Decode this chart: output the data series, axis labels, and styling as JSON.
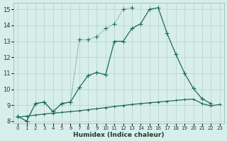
{
  "xlabel": "Humidex (Indice chaleur)",
  "xlim": [
    -0.5,
    23.5
  ],
  "ylim": [
    7.85,
    15.4
  ],
  "yticks": [
    8,
    9,
    10,
    11,
    12,
    13,
    14,
    15
  ],
  "xticks": [
    0,
    1,
    2,
    3,
    4,
    5,
    6,
    7,
    8,
    9,
    10,
    11,
    12,
    13,
    14,
    15,
    16,
    17,
    18,
    19,
    20,
    21,
    22,
    23
  ],
  "bg_color": "#d8eeea",
  "line_color": "#1a6b5a",
  "grid_color": "#b8d8d2",
  "curve1_x": [
    0,
    1,
    2,
    3,
    4,
    5,
    6,
    7,
    8,
    9,
    10,
    11,
    12,
    13,
    14,
    15,
    16,
    17,
    18,
    19,
    20,
    21,
    22
  ],
  "curve1_y": [
    8.3,
    8.0,
    9.1,
    9.2,
    8.6,
    9.1,
    9.2,
    10.1,
    10.85,
    11.05,
    10.9,
    13.0,
    13.0,
    13.8,
    14.1,
    15.0,
    15.1,
    13.5,
    12.2,
    11.0,
    10.05,
    9.4,
    9.1
  ],
  "curve2_x": [
    0,
    1,
    2,
    3,
    4,
    5,
    6,
    7,
    8,
    9,
    10,
    11,
    12,
    13
  ],
  "curve2_y": [
    8.3,
    8.0,
    9.1,
    9.2,
    8.6,
    9.1,
    9.2,
    13.1,
    13.1,
    13.3,
    13.8,
    14.1,
    15.0,
    15.1
  ],
  "curve3_x": [
    0,
    1,
    2,
    3,
    4,
    5,
    6,
    7,
    8,
    9,
    10,
    11,
    12,
    13,
    14,
    15,
    16,
    17,
    18,
    19,
    20,
    21,
    22,
    23
  ],
  "curve3_y": [
    8.25,
    8.32,
    8.38,
    8.45,
    8.5,
    8.55,
    8.6,
    8.65,
    8.72,
    8.78,
    8.85,
    8.92,
    8.98,
    9.05,
    9.1,
    9.15,
    9.2,
    9.25,
    9.3,
    9.35,
    9.38,
    9.1,
    8.95,
    9.05
  ]
}
